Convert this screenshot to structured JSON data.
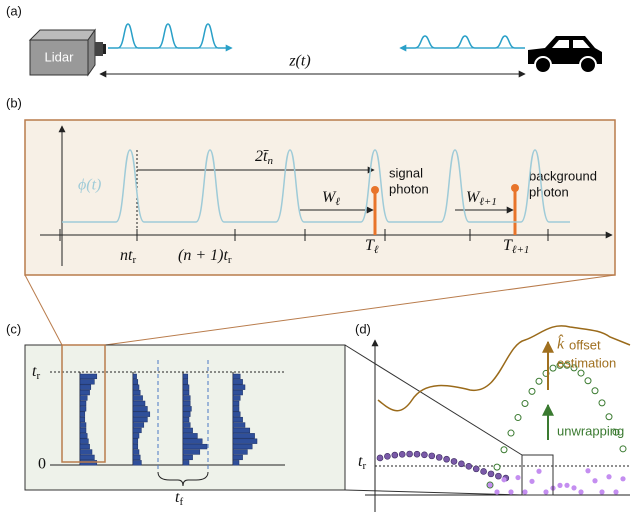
{
  "panel_a": {
    "label": "(a)",
    "lidar": "Lidar",
    "distance": "z(t)"
  },
  "panel_b": {
    "label": "(b)",
    "pulse": "ϕ(t)",
    "delay": {
      "base": "2t̄",
      "sub": "n"
    },
    "signal": [
      "signal",
      "photon"
    ],
    "background": [
      "background",
      "photon"
    ],
    "window1": {
      "base": "W",
      "sub": "ℓ"
    },
    "window2": {
      "base": "W",
      "sub": "ℓ+1"
    },
    "time1": {
      "base": "T",
      "sub": "ℓ"
    },
    "time2": {
      "base": "T",
      "sub": "ℓ+1"
    },
    "tick1": {
      "base": "nt",
      "sub": "r"
    },
    "tick2": {
      "base": "(n + 1)t",
      "sub": "r"
    }
  },
  "panel_c": {
    "label": "(c)",
    "top": {
      "base": "t",
      "sub": "r"
    },
    "zero": "0",
    "period": {
      "base": "t",
      "sub": "f"
    }
  },
  "panel_d": {
    "label": "(d)",
    "top": {
      "base": "t",
      "sub": "r"
    },
    "offset": {
      "hat": "k̂",
      "lines": [
        "offset",
        "estimation"
      ]
    },
    "unwrap": "unwrapping"
  }
}
